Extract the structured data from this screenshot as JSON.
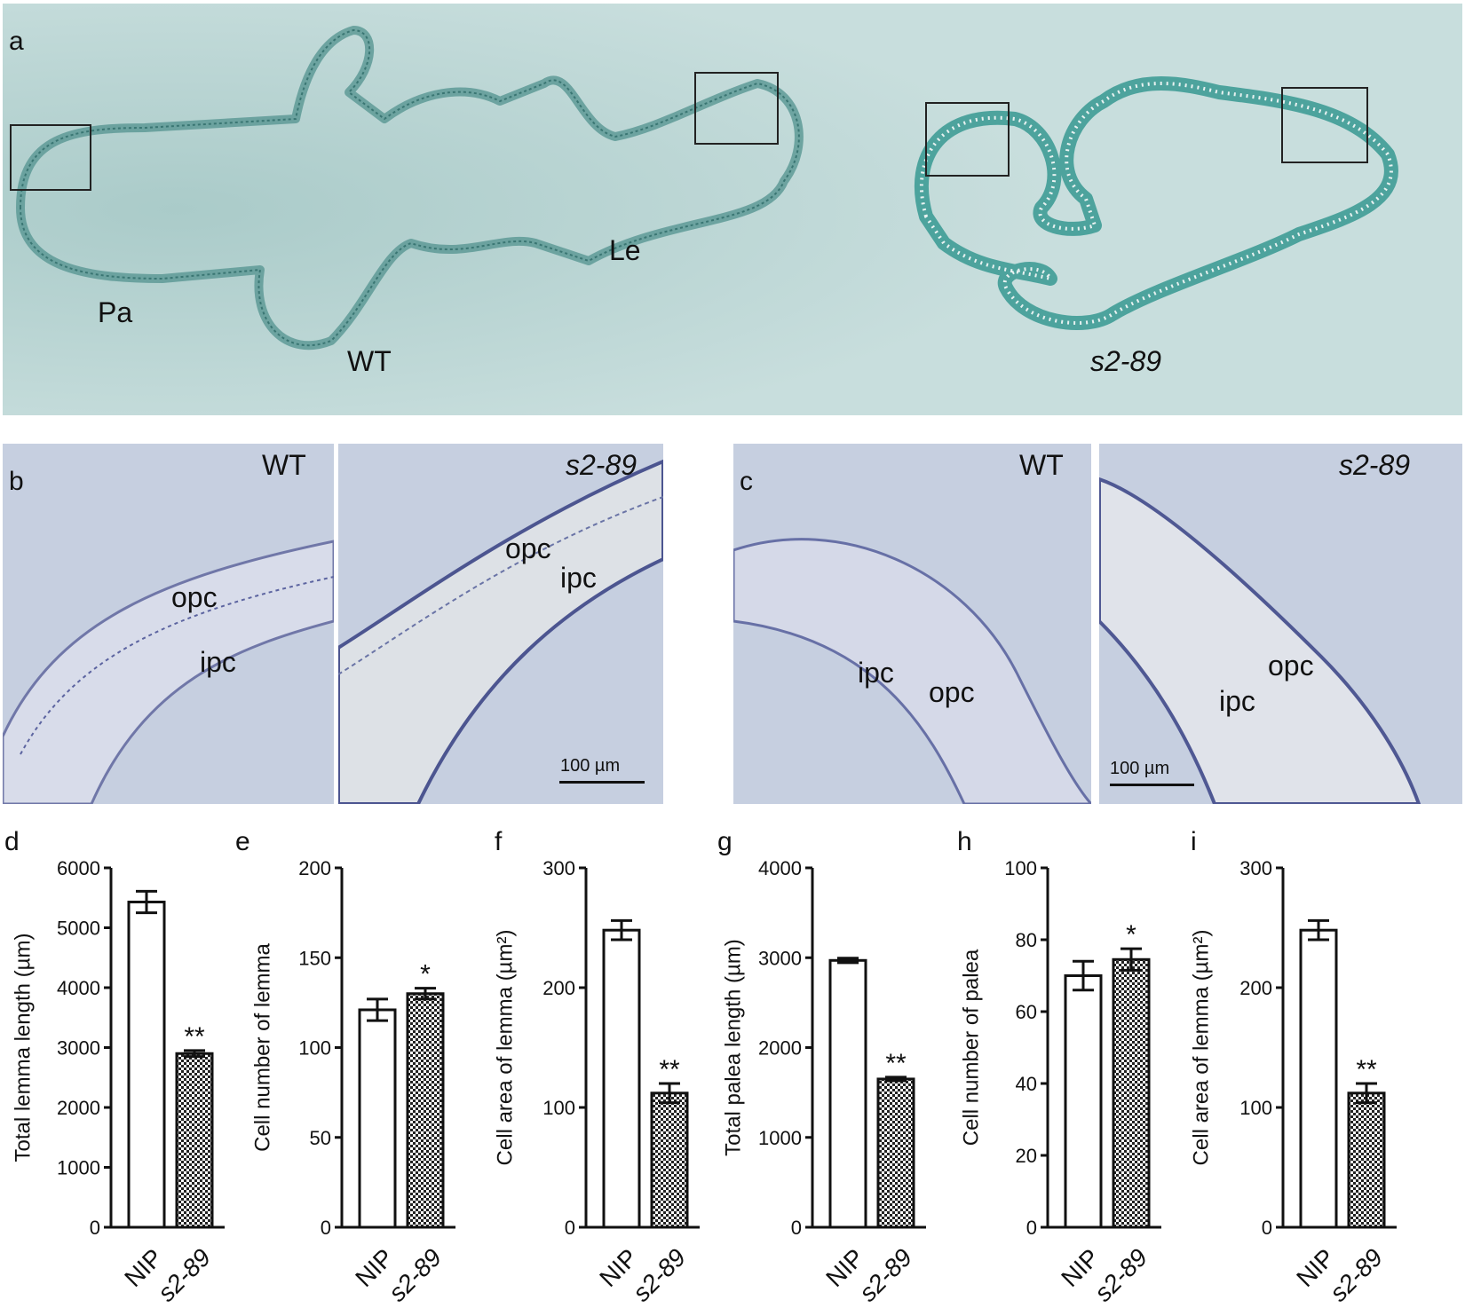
{
  "panel_a": {
    "letter": "a",
    "label_pa": "Pa",
    "label_le": "Le",
    "label_wt": "WT",
    "label_mutant": "s2-89"
  },
  "panel_b": {
    "letter": "b",
    "wt": {
      "title": "WT",
      "label_opc": "opc",
      "label_ipc": "ipc"
    },
    "mutant": {
      "title": "s2-89",
      "label_opc": "opc",
      "label_ipc": "ipc",
      "scale": "100 µm"
    }
  },
  "panel_c": {
    "letter": "c",
    "wt": {
      "title": "WT",
      "label_ipc": "ipc",
      "label_opc": "opc"
    },
    "mutant": {
      "title": "s2-89",
      "label_opc": "opc",
      "label_ipc": "ipc",
      "scale": "100 µm"
    }
  },
  "chart_data": [
    {
      "panel": "d",
      "type": "bar",
      "categories": [
        "NIP",
        "s2-89"
      ],
      "values": [
        5430,
        2900
      ],
      "errors": [
        180,
        50
      ],
      "ylabel": "Total lemma length (µm)",
      "ylim": [
        0,
        6000
      ],
      "yticks": [
        0,
        1000,
        2000,
        3000,
        4000,
        5000,
        6000
      ],
      "significance": [
        "",
        "**"
      ],
      "fills": [
        "open",
        "hatched"
      ]
    },
    {
      "panel": "e",
      "type": "bar",
      "categories": [
        "NIP",
        "s2-89"
      ],
      "values": [
        121,
        130
      ],
      "errors": [
        6,
        3
      ],
      "ylabel": "Cell number of lemma",
      "ylim": [
        0,
        200
      ],
      "yticks": [
        0,
        50,
        100,
        150,
        200
      ],
      "significance": [
        "",
        "*"
      ],
      "fills": [
        "open",
        "hatched"
      ]
    },
    {
      "panel": "f",
      "type": "bar",
      "categories": [
        "NIP",
        "s2-89"
      ],
      "values": [
        248,
        112
      ],
      "errors": [
        8,
        8
      ],
      "ylabel": "Cell area of lemma (µm²)",
      "ylim": [
        0,
        300
      ],
      "yticks": [
        0,
        100,
        200,
        300
      ],
      "significance": [
        "",
        "**"
      ],
      "fills": [
        "open",
        "hatched"
      ]
    },
    {
      "panel": "g",
      "type": "bar",
      "categories": [
        "NIP",
        "s2-89"
      ],
      "values": [
        2970,
        1650
      ],
      "errors": [
        25,
        20
      ],
      "ylabel": "Total palea length (µm)",
      "ylim": [
        0,
        4000
      ],
      "yticks": [
        0,
        1000,
        2000,
        3000,
        4000
      ],
      "significance": [
        "",
        "**"
      ],
      "fills": [
        "open",
        "hatched"
      ]
    },
    {
      "panel": "h",
      "type": "bar",
      "categories": [
        "NIP",
        "s2-89"
      ],
      "values": [
        70,
        74.5
      ],
      "errors": [
        4,
        3
      ],
      "ylabel": "Cell number of palea",
      "ylim": [
        0,
        100
      ],
      "yticks": [
        0,
        20,
        40,
        60,
        80,
        100
      ],
      "significance": [
        "",
        "*"
      ],
      "fills": [
        "open",
        "hatched"
      ]
    },
    {
      "panel": "i",
      "type": "bar",
      "categories": [
        "NIP",
        "s2-89"
      ],
      "values": [
        248,
        112
      ],
      "errors": [
        8,
        8
      ],
      "ylabel": "Cell area of lemma (µm²)",
      "ylim": [
        0,
        300
      ],
      "yticks": [
        0,
        100,
        200,
        300
      ],
      "significance": [
        "",
        "**"
      ],
      "fills": [
        "open",
        "hatched"
      ]
    }
  ]
}
